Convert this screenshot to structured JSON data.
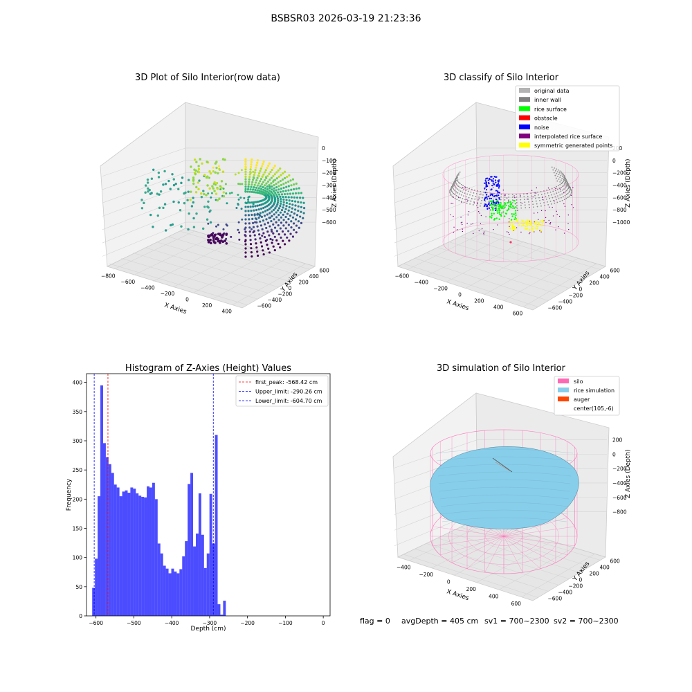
{
  "suptitle": "BSBSR03 2026-03-19 21:23:36",
  "status_line": {
    "flag": "flag = 0",
    "avg_depth": "avgDepth = 405 cm",
    "sv1": "sv1 = 700~2300",
    "sv2": "sv2 = 700~2300"
  },
  "chart_data": [
    {
      "type": "scatter",
      "projection": "3d",
      "title": "3D Plot of Silo Interior(row data)",
      "xlabel": "X Axies",
      "ylabel": "Y Axies",
      "zlabel": "Z Axies (Depth)",
      "colormap": "viridis",
      "x_ticks": [
        "−800",
        "−600",
        "−400",
        "−200",
        "0",
        "200",
        "400"
      ],
      "y_ticks": [
        "600",
        "400",
        "200",
        "0",
        "−200",
        "−400",
        "−600"
      ],
      "z_ticks": [
        "0",
        "−100",
        "−200",
        "−300",
        "−400",
        "−500",
        "−600"
      ],
      "xlim": [
        -800,
        500
      ],
      "ylim": [
        -650,
        650
      ],
      "zlim": [
        -650,
        0
      ]
    },
    {
      "type": "scatter",
      "projection": "3d",
      "title": "3D classify of Silo Interior",
      "xlabel": "X Axies",
      "ylabel": "Y Axies",
      "zlabel": "Z Axies (Depth)",
      "x_ticks": [
        "−600",
        "−400",
        "−200",
        "0",
        "200",
        "400",
        "600"
      ],
      "y_ticks": [
        "600",
        "400",
        "200",
        "0",
        "−200",
        "−400",
        "−600"
      ],
      "z_ticks": [
        "200",
        "0",
        "−200",
        "−400",
        "−600",
        "−800",
        "−1000"
      ],
      "legend_position": "top-right",
      "legend": [
        {
          "label": "original data",
          "color": "#b3b3b3"
        },
        {
          "label": "inner wall",
          "color": "#808080"
        },
        {
          "label": "rice surface",
          "color": "#00ff00"
        },
        {
          "label": "obstacle",
          "color": "#ff0000"
        },
        {
          "label": "noise",
          "color": "#0000ff"
        },
        {
          "label": "interpolated rice surface",
          "color": "#800080"
        },
        {
          "label": "symmetric generated points",
          "color": "#ffff00"
        }
      ],
      "silo_wire_color": "#ff69b4"
    },
    {
      "type": "bar",
      "title": "Histogram of Z-Axies (Height) Values",
      "xlabel": "Depth (cm)",
      "ylabel": "Frequency",
      "bar_color": "#0000ff",
      "bar_alpha": 0.7,
      "bin_start": -610,
      "bin_width": 7.2,
      "values": [
        48,
        98,
        205,
        395,
        296,
        272,
        260,
        245,
        225,
        220,
        205,
        213,
        215,
        211,
        220,
        218,
        210,
        206,
        204,
        203,
        222,
        220,
        228,
        200,
        124,
        107,
        86,
        81,
        73,
        81,
        76,
        73,
        80,
        102,
        128,
        226,
        245,
        119,
        141,
        210,
        139,
        82,
        107,
        209,
        124,
        310,
        20,
        2,
        26
      ],
      "xlim": [
        -625,
        18
      ],
      "ylim": [
        0,
        415
      ],
      "x_ticks": [
        -600,
        -500,
        -400,
        -300,
        -200,
        -100,
        0
      ],
      "x_tick_labels": [
        "−600",
        "−500",
        "−400",
        "−300",
        "−200",
        "−100",
        "0"
      ],
      "y_ticks": [
        0,
        50,
        100,
        150,
        200,
        250,
        300,
        350,
        400
      ],
      "vlines": [
        {
          "x": -568.42,
          "color": "#ff0000",
          "label": "first_peak: -568.42 cm"
        },
        {
          "x": -290.26,
          "color": "#0000ff",
          "label": "Upper_limit: -290.26 cm"
        },
        {
          "x": -604.7,
          "color": "#0000ff",
          "label": "Lower_limit: -604.70 cm"
        }
      ],
      "legend_position": "top-right"
    },
    {
      "type": "area",
      "projection": "3d",
      "title": "3D simulation of Silo Interior",
      "xlabel": "X Axies",
      "ylabel": "Y Axies",
      "zlabel": "Z Axies (Depth)",
      "x_ticks": [
        "−400",
        "−200",
        "0",
        "200",
        "400",
        "600"
      ],
      "y_ticks": [
        "600",
        "400",
        "200",
        "0",
        "−200",
        "−400",
        "−600"
      ],
      "z_ticks": [
        "200",
        "0",
        "−200",
        "−400",
        "−600",
        "−800"
      ],
      "legend_position": "top-right",
      "legend": [
        {
          "label": "silo",
          "color": "#ff69b4"
        },
        {
          "label": "rice simulation",
          "color": "#87ceeb"
        },
        {
          "label": "auger",
          "color": "#ff4500"
        },
        {
          "label": "center(105,-6)",
          "color": "#ffffff"
        }
      ]
    }
  ]
}
